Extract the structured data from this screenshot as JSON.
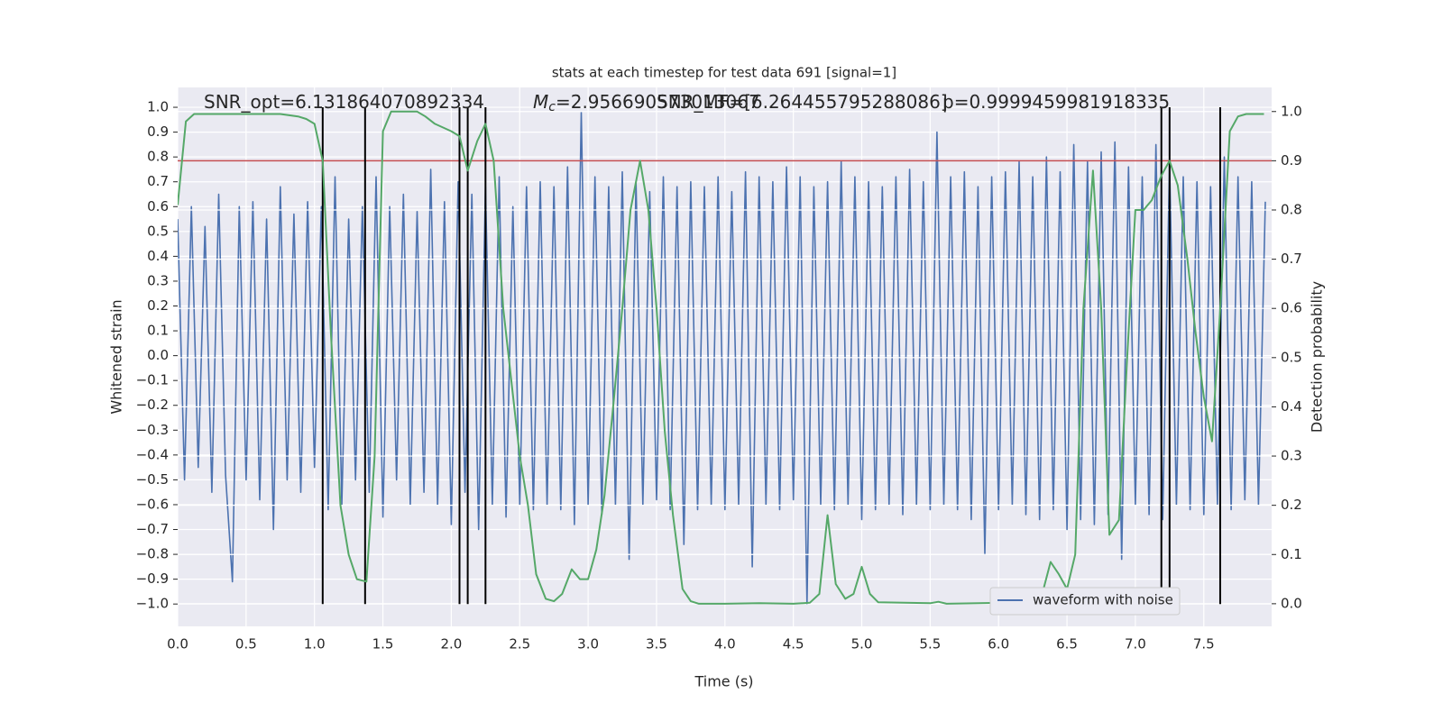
{
  "chart_data": {
    "type": "line",
    "title": "stats at each timestep for test data 691 [signal=1]",
    "xlabel": "Time (s)",
    "ylabel": "Whitened strain",
    "y2label": "Detection probability",
    "annotations": [
      {
        "text": "SNR_opt=6.131864070892334"
      },
      {
        "symbol": "M",
        "subscript": "c",
        "text": "=2.956690573013067"
      },
      {
        "text": "SNR_MF=[6.264455795288086]"
      },
      {
        "text": "p=0.9999459981918335"
      }
    ],
    "xlim": [
      0,
      7.996
    ],
    "ylim": [
      -1.09,
      1.08
    ],
    "y2lim": [
      -0.046,
      1.049
    ],
    "xticks": [
      {
        "value": 0,
        "label": "0.0"
      },
      0.5,
      {
        "value": 1,
        "label": "1.0"
      },
      1.5,
      {
        "value": 2,
        "label": "2.0"
      },
      2.5,
      {
        "value": 3,
        "label": "3.0"
      },
      3.5,
      {
        "value": 4,
        "label": "4.0"
      },
      4.5,
      {
        "value": 5,
        "label": "5.0"
      },
      5.5,
      {
        "value": 6,
        "label": "6.0"
      },
      6.5,
      {
        "value": 7,
        "label": "7.0"
      },
      7.5
    ],
    "yticks": [
      {
        "value": -1,
        "label": "−1.0"
      },
      {
        "value": -0.9,
        "label": "−0.9"
      },
      {
        "value": -0.8,
        "label": "−0.8"
      },
      {
        "value": -0.7,
        "label": "−0.7"
      },
      {
        "value": -0.6,
        "label": "−0.6"
      },
      {
        "value": -0.5,
        "label": "−0.5"
      },
      {
        "value": -0.4,
        "label": "−0.4"
      },
      {
        "value": -0.3,
        "label": "−0.3"
      },
      {
        "value": -0.2,
        "label": "−0.2"
      },
      {
        "value": -0.1,
        "label": "−0.1"
      },
      {
        "value": 0,
        "label": "0.0"
      },
      0.1,
      0.2,
      0.3,
      0.4,
      0.5,
      0.6,
      0.7,
      0.8,
      0.9,
      {
        "value": 1,
        "label": "1.0"
      }
    ],
    "y2ticks": [
      {
        "value": 0,
        "label": "0.0"
      },
      0.1,
      0.2,
      0.3,
      0.4,
      0.5,
      0.6,
      0.7,
      0.8,
      0.9,
      {
        "value": 1,
        "label": "1.0"
      }
    ],
    "grid": true,
    "legend": "lower right",
    "series": [
      {
        "name": "waveform with noise",
        "color": "#4c72b0",
        "x": [
          0,
          0.05,
          0.1,
          0.15,
          0.2,
          0.25,
          0.3,
          0.35,
          0.4,
          0.45,
          0.5,
          0.55,
          0.6,
          0.65,
          0.7,
          0.75,
          0.8,
          0.85,
          0.9,
          0.95,
          1,
          1.05,
          1.1,
          1.15,
          1.2,
          1.25,
          1.3,
          1.35,
          1.4,
          1.45,
          1.5,
          1.55,
          1.6,
          1.65,
          1.7,
          1.75,
          1.8,
          1.85,
          1.9,
          1.95,
          2,
          2.05,
          2.1,
          2.15,
          2.2,
          2.25,
          2.3,
          2.35,
          2.4,
          2.45,
          2.5,
          2.55,
          2.6,
          2.65,
          2.7,
          2.75,
          2.8,
          2.85,
          2.9,
          2.95,
          3,
          3.05,
          3.1,
          3.15,
          3.2,
          3.25,
          3.3,
          3.35,
          3.4,
          3.45,
          3.5,
          3.55,
          3.6,
          3.65,
          3.7,
          3.75,
          3.8,
          3.85,
          3.9,
          3.95,
          4,
          4.05,
          4.1,
          4.15,
          4.2,
          4.25,
          4.3,
          4.35,
          4.4,
          4.45,
          4.5,
          4.55,
          4.6,
          4.65,
          4.7,
          4.75,
          4.8,
          4.85,
          4.9,
          4.95,
          5,
          5.05,
          5.1,
          5.15,
          5.2,
          5.25,
          5.3,
          5.35,
          5.4,
          5.45,
          5.5,
          5.55,
          5.6,
          5.65,
          5.7,
          5.75,
          5.8,
          5.85,
          5.9,
          5.95,
          6,
          6.05,
          6.1,
          6.15,
          6.2,
          6.25,
          6.3,
          6.35,
          6.4,
          6.45,
          6.5,
          6.55,
          6.6,
          6.65,
          6.7,
          6.75,
          6.8,
          6.85,
          6.9,
          6.95,
          7,
          7.05,
          7.1,
          7.15,
          7.2,
          7.25,
          7.3,
          7.35,
          7.4,
          7.45,
          7.5,
          7.55,
          7.6,
          7.65,
          7.7,
          7.75,
          7.8,
          7.85,
          7.9,
          7.95
        ],
        "values": [
          0.55,
          -0.5,
          0.6,
          -0.45,
          0.52,
          -0.55,
          0.65,
          -0.48,
          -0.91,
          0.6,
          -0.5,
          0.62,
          -0.58,
          0.55,
          -0.7,
          0.68,
          -0.5,
          0.57,
          -0.55,
          0.62,
          -0.45,
          0.6,
          -0.62,
          0.72,
          -0.6,
          0.55,
          -0.5,
          0.6,
          -0.55,
          0.72,
          -0.65,
          0.6,
          -0.5,
          0.65,
          -0.6,
          0.58,
          -0.55,
          0.75,
          -0.6,
          0.62,
          -0.68,
          0.7,
          -0.55,
          0.65,
          -0.7,
          0.68,
          -0.6,
          0.72,
          -0.65,
          0.6,
          -0.6,
          0.68,
          -0.62,
          0.7,
          -0.6,
          0.68,
          -0.62,
          0.76,
          -0.68,
          0.98,
          -0.6,
          0.72,
          -0.64,
          0.68,
          -0.6,
          0.74,
          -0.82,
          0.7,
          -0.6,
          0.66,
          -0.58,
          0.72,
          -0.62,
          0.68,
          -0.76,
          0.7,
          -0.62,
          0.68,
          -0.6,
          0.72,
          -0.62,
          0.66,
          -0.6,
          0.74,
          -0.85,
          0.72,
          -0.6,
          0.7,
          -0.62,
          0.76,
          -0.58,
          0.72,
          -1.0,
          0.68,
          -0.6,
          0.7,
          -0.62,
          0.78,
          -0.6,
          0.72,
          -0.66,
          0.7,
          -0.62,
          0.68,
          -0.6,
          0.72,
          -0.64,
          0.75,
          -0.6,
          0.7,
          -0.62,
          0.9,
          -0.6,
          0.72,
          -0.62,
          0.74,
          -0.66,
          0.68,
          -0.8,
          0.72,
          -0.62,
          0.74,
          -0.6,
          0.78,
          -0.64,
          0.72,
          -0.66,
          0.8,
          -0.62,
          0.74,
          -0.7,
          0.85,
          -0.66,
          0.78,
          -0.68,
          0.82,
          -0.64,
          0.86,
          -0.82,
          0.76,
          -0.6,
          0.72,
          -0.64,
          0.85,
          -0.66,
          0.78,
          -0.6,
          0.72,
          -0.62,
          0.7,
          -0.64,
          0.68,
          -0.6,
          0.8,
          -0.62,
          0.72,
          -0.58,
          0.7,
          -0.6,
          0.62
        ]
      },
      {
        "color": "#55a868",
        "axis": "y2",
        "x": [
          0,
          0.06,
          0.12,
          0.25,
          0.5,
          0.75,
          0.88,
          0.94,
          1.0,
          1.06,
          1.12,
          1.19,
          1.25,
          1.31,
          1.38,
          1.44,
          1.5,
          1.56,
          1.62,
          1.75,
          1.81,
          1.88,
          2.0,
          2.06,
          2.12,
          2.19,
          2.25,
          2.31,
          2.38,
          2.5,
          2.56,
          2.62,
          2.69,
          2.75,
          2.81,
          2.88,
          2.94,
          3.0,
          3.06,
          3.12,
          3.19,
          3.25,
          3.31,
          3.38,
          3.44,
          3.5,
          3.56,
          3.62,
          3.69,
          3.75,
          3.81,
          4.0,
          4.25,
          4.5,
          4.62,
          4.69,
          4.75,
          4.81,
          4.88,
          4.94,
          5.0,
          5.06,
          5.12,
          5.5,
          5.56,
          5.62,
          6.25,
          6.31,
          6.38,
          6.44,
          6.5,
          6.56,
          6.62,
          6.69,
          6.75,
          6.81,
          6.88,
          6.94,
          7.0,
          7.06,
          7.12,
          7.19,
          7.25,
          7.31,
          7.38,
          7.44,
          7.5,
          7.56,
          7.62,
          7.69,
          7.75,
          7.81,
          7.94
        ],
        "values": [
          0.81,
          0.98,
          0.995,
          0.995,
          0.995,
          0.995,
          0.99,
          0.985,
          0.975,
          0.9,
          0.55,
          0.2,
          0.1,
          0.05,
          0.045,
          0.3,
          0.96,
          1.0,
          1.0,
          1.0,
          0.99,
          0.975,
          0.96,
          0.95,
          0.88,
          0.94,
          0.975,
          0.9,
          0.6,
          0.3,
          0.2,
          0.06,
          0.01,
          0.005,
          0.02,
          0.07,
          0.05,
          0.05,
          0.11,
          0.22,
          0.42,
          0.6,
          0.8,
          0.9,
          0.8,
          0.6,
          0.35,
          0.18,
          0.03,
          0.005,
          0.0,
          0.0,
          0.001,
          0.0,
          0.002,
          0.02,
          0.18,
          0.04,
          0.01,
          0.02,
          0.075,
          0.02,
          0.003,
          0.001,
          0.004,
          0.0,
          0.003,
          0.01,
          0.085,
          0.06,
          0.03,
          0.1,
          0.6,
          0.88,
          0.6,
          0.14,
          0.17,
          0.5,
          0.8,
          0.8,
          0.82,
          0.87,
          0.9,
          0.85,
          0.7,
          0.55,
          0.42,
          0.33,
          0.6,
          0.96,
          0.99,
          0.995,
          0.995
        ]
      }
    ],
    "hlines": [
      {
        "value": 0.9,
        "axis": "y2",
        "color": "#c44e52"
      }
    ],
    "vlines": [
      {
        "x": 1.06,
        "ymin": -1,
        "ymax": 1
      },
      {
        "x": 1.37,
        "ymin": -1,
        "ymax": 1
      },
      {
        "x": 2.06,
        "ymin": -1,
        "ymax": 1
      },
      {
        "x": 2.12,
        "ymin": -1,
        "ymax": 1
      },
      {
        "x": 2.25,
        "ymin": -1,
        "ymax": 1
      },
      {
        "x": 7.19,
        "ymin": -1,
        "ymax": 1
      },
      {
        "x": 7.25,
        "ymin": -1,
        "ymax": 1
      },
      {
        "x": 7.62,
        "ymin": -1,
        "ymax": 1
      }
    ]
  }
}
